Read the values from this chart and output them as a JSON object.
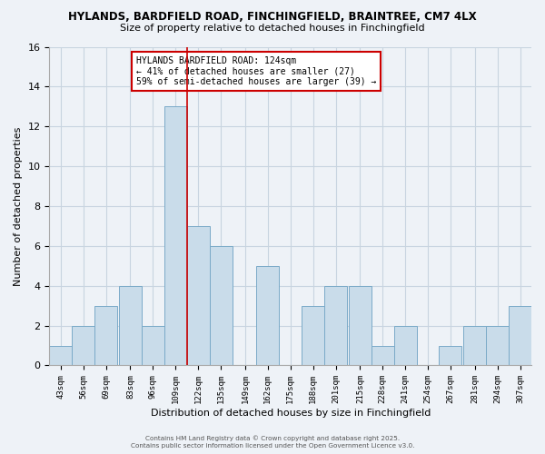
{
  "title": "HYLANDS, BARDFIELD ROAD, FINCHINGFIELD, BRAINTREE, CM7 4LX",
  "subtitle": "Size of property relative to detached houses in Finchingfield",
  "xlabel": "Distribution of detached houses by size in Finchingfield",
  "ylabel": "Number of detached properties",
  "bin_labels": [
    "43sqm",
    "56sqm",
    "69sqm",
    "83sqm",
    "96sqm",
    "109sqm",
    "122sqm",
    "135sqm",
    "149sqm",
    "162sqm",
    "175sqm",
    "188sqm",
    "201sqm",
    "215sqm",
    "228sqm",
    "241sqm",
    "254sqm",
    "267sqm",
    "281sqm",
    "294sqm",
    "307sqm"
  ],
  "bin_edges": [
    43,
    56,
    69,
    83,
    96,
    109,
    122,
    135,
    149,
    162,
    175,
    188,
    201,
    215,
    228,
    241,
    254,
    267,
    281,
    294,
    307
  ],
  "bar_counts": [
    1,
    2,
    3,
    4,
    2,
    13,
    7,
    6,
    0,
    5,
    0,
    3,
    4,
    4,
    1,
    2,
    0,
    1,
    2,
    2,
    3
  ],
  "bar_color": "#c9dcea",
  "bar_edge_color": "#7aaac8",
  "grid_color": "#c8d4e0",
  "bg_color": "#eef2f7",
  "vline_x": 122,
  "vline_color": "#cc0000",
  "annotation_title": "HYLANDS BARDFIELD ROAD: 124sqm",
  "annotation_line1": "← 41% of detached houses are smaller (27)",
  "annotation_line2": "59% of semi-detached houses are larger (39) →",
  "annotation_box_color": "#ffffff",
  "annotation_box_edge": "#cc0000",
  "ylim": [
    0,
    16
  ],
  "yticks": [
    0,
    2,
    4,
    6,
    8,
    10,
    12,
    14,
    16
  ],
  "footer1": "Contains HM Land Registry data © Crown copyright and database right 2025.",
  "footer2": "Contains public sector information licensed under the Open Government Licence v3.0."
}
